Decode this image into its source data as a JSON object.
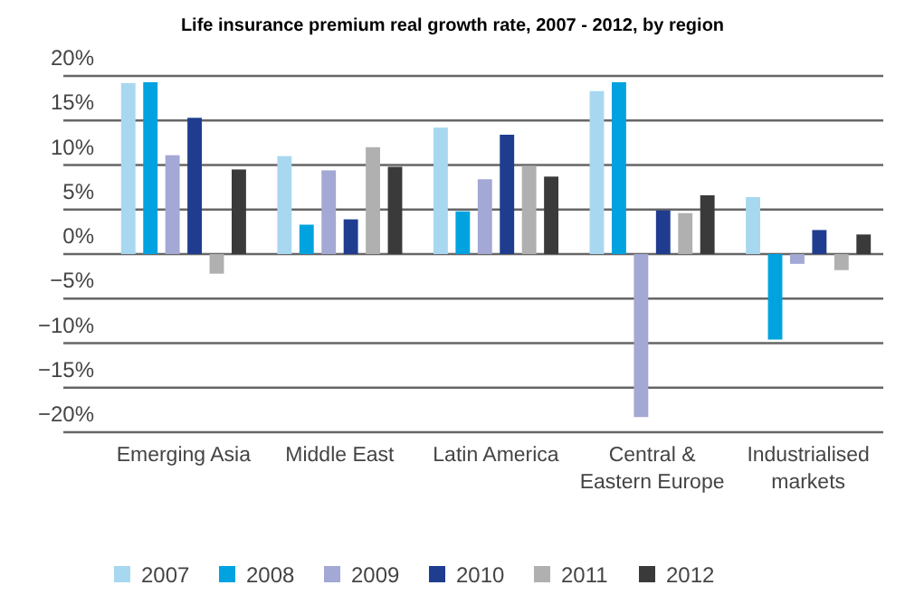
{
  "chart_data": {
    "type": "bar",
    "title": "Life insurance premium real growth rate, 2007 - 2012, by region",
    "categories": [
      "Emerging Asia",
      "Middle East",
      "Latin America",
      "Central &\nEastern Europe",
      "Industrialised\nmarkets"
    ],
    "series": [
      {
        "name": "2007",
        "color": "#a8d8f0",
        "values": [
          19.2,
          11.0,
          14.2,
          18.3,
          6.4
        ]
      },
      {
        "name": "2008",
        "color": "#00a3e0",
        "values": [
          19.3,
          3.3,
          4.8,
          19.3,
          -9.6
        ]
      },
      {
        "name": "2009",
        "color": "#a3a8d4",
        "values": [
          11.1,
          9.4,
          8.4,
          -18.3,
          -1.1
        ]
      },
      {
        "name": "2010",
        "color": "#1f3c8f",
        "values": [
          15.3,
          3.9,
          13.4,
          4.9,
          2.7
        ]
      },
      {
        "name": "2011",
        "color": "#b0b0b0",
        "values": [
          -2.2,
          12.0,
          9.9,
          4.6,
          -1.8
        ]
      },
      {
        "name": "2012",
        "color": "#3a3a3a",
        "values": [
          9.5,
          9.8,
          8.7,
          6.6,
          2.2
        ]
      }
    ],
    "ylim": [
      -20,
      20
    ],
    "yticks": [
      {
        "value": -20,
        "label": "−20%"
      },
      {
        "value": -15,
        "label": "−15%"
      },
      {
        "value": -10,
        "label": "−10%"
      },
      {
        "value": -5,
        "label": "−5%"
      },
      {
        "value": 0,
        "label": "0%"
      },
      {
        "value": 5,
        "label": "5%"
      },
      {
        "value": 10,
        "label": "10%"
      },
      {
        "value": 15,
        "label": "15%"
      },
      {
        "value": 20,
        "label": "20%"
      }
    ],
    "grid": "y",
    "legend": "bottom"
  }
}
